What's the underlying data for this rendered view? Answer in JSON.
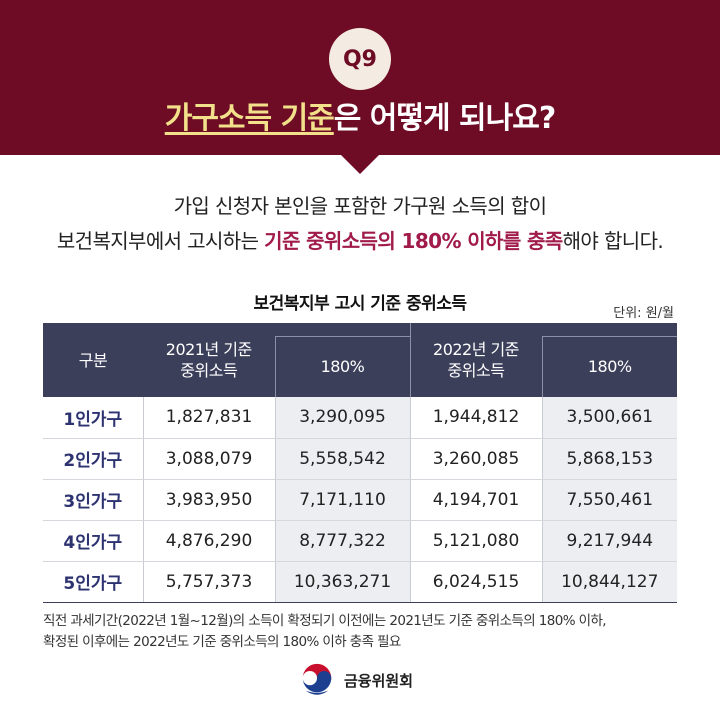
{
  "header": {
    "badge": "Q9",
    "title_highlight": "가구소득 기준",
    "title_rest": "은 어떻게 되나요?"
  },
  "description": {
    "line1": "가입 신청자 본인을 포함한 가구원 소득의 합이",
    "line2_prefix": "보건복지부에서 고시하는 ",
    "line2_accent": "기준 중위소득의 180% 이하를 충족",
    "line2_suffix": "해야 합니다."
  },
  "table": {
    "title": "보건복지부 고시 기준 중위소득",
    "unit": "단위: 원/월",
    "headers": {
      "category": "구분",
      "group_2021_line1": "2021년 기준",
      "group_2021_line2": "중위소득",
      "pct_2021": "180%",
      "group_2022_line1": "2022년 기준",
      "group_2022_line2": "중위소득",
      "pct_2022": "180%"
    },
    "rows": [
      {
        "label": "1인가구",
        "v2021": "1,827,831",
        "p2021": "3,290,095",
        "v2022": "1,944,812",
        "p2022": "3,500,661"
      },
      {
        "label": "2인가구",
        "v2021": "3,088,079",
        "p2021": "5,558,542",
        "v2022": "3,260,085",
        "p2022": "5,868,153"
      },
      {
        "label": "3인가구",
        "v2021": "3,983,950",
        "p2021": "7,171,110",
        "v2022": "4,194,701",
        "p2022": "7,550,461"
      },
      {
        "label": "4인가구",
        "v2021": "4,876,290",
        "p2021": "8,777,322",
        "v2022": "5,121,080",
        "p2022": "9,217,944"
      },
      {
        "label": "5인가구",
        "v2021": "5,757,373",
        "p2021": "10,363,271",
        "v2022": "6,024,515",
        "p2022": "10,844,127"
      }
    ]
  },
  "footnote": {
    "line1": "직전 과세기간(2022년 1월~12월)의 소득이 확정되기 이전에는 2021년도 기준 중위소득의 180% 이하,",
    "line2": "확정된 이후에는 2022년도 기준 중위소득의 180% 이하 충족 필요"
  },
  "logo": {
    "text": "금융위원회",
    "icon": "taegeuk-emblem-icon"
  },
  "colors": {
    "header_bg": "#6e0b25",
    "badge_bg": "#f4ece2",
    "title_highlight": "#f2e08a",
    "accent": "#a01a4a",
    "table_header_bg": "#3c3f5a",
    "row_label": "#2d3270",
    "shade": "#eceef2"
  }
}
